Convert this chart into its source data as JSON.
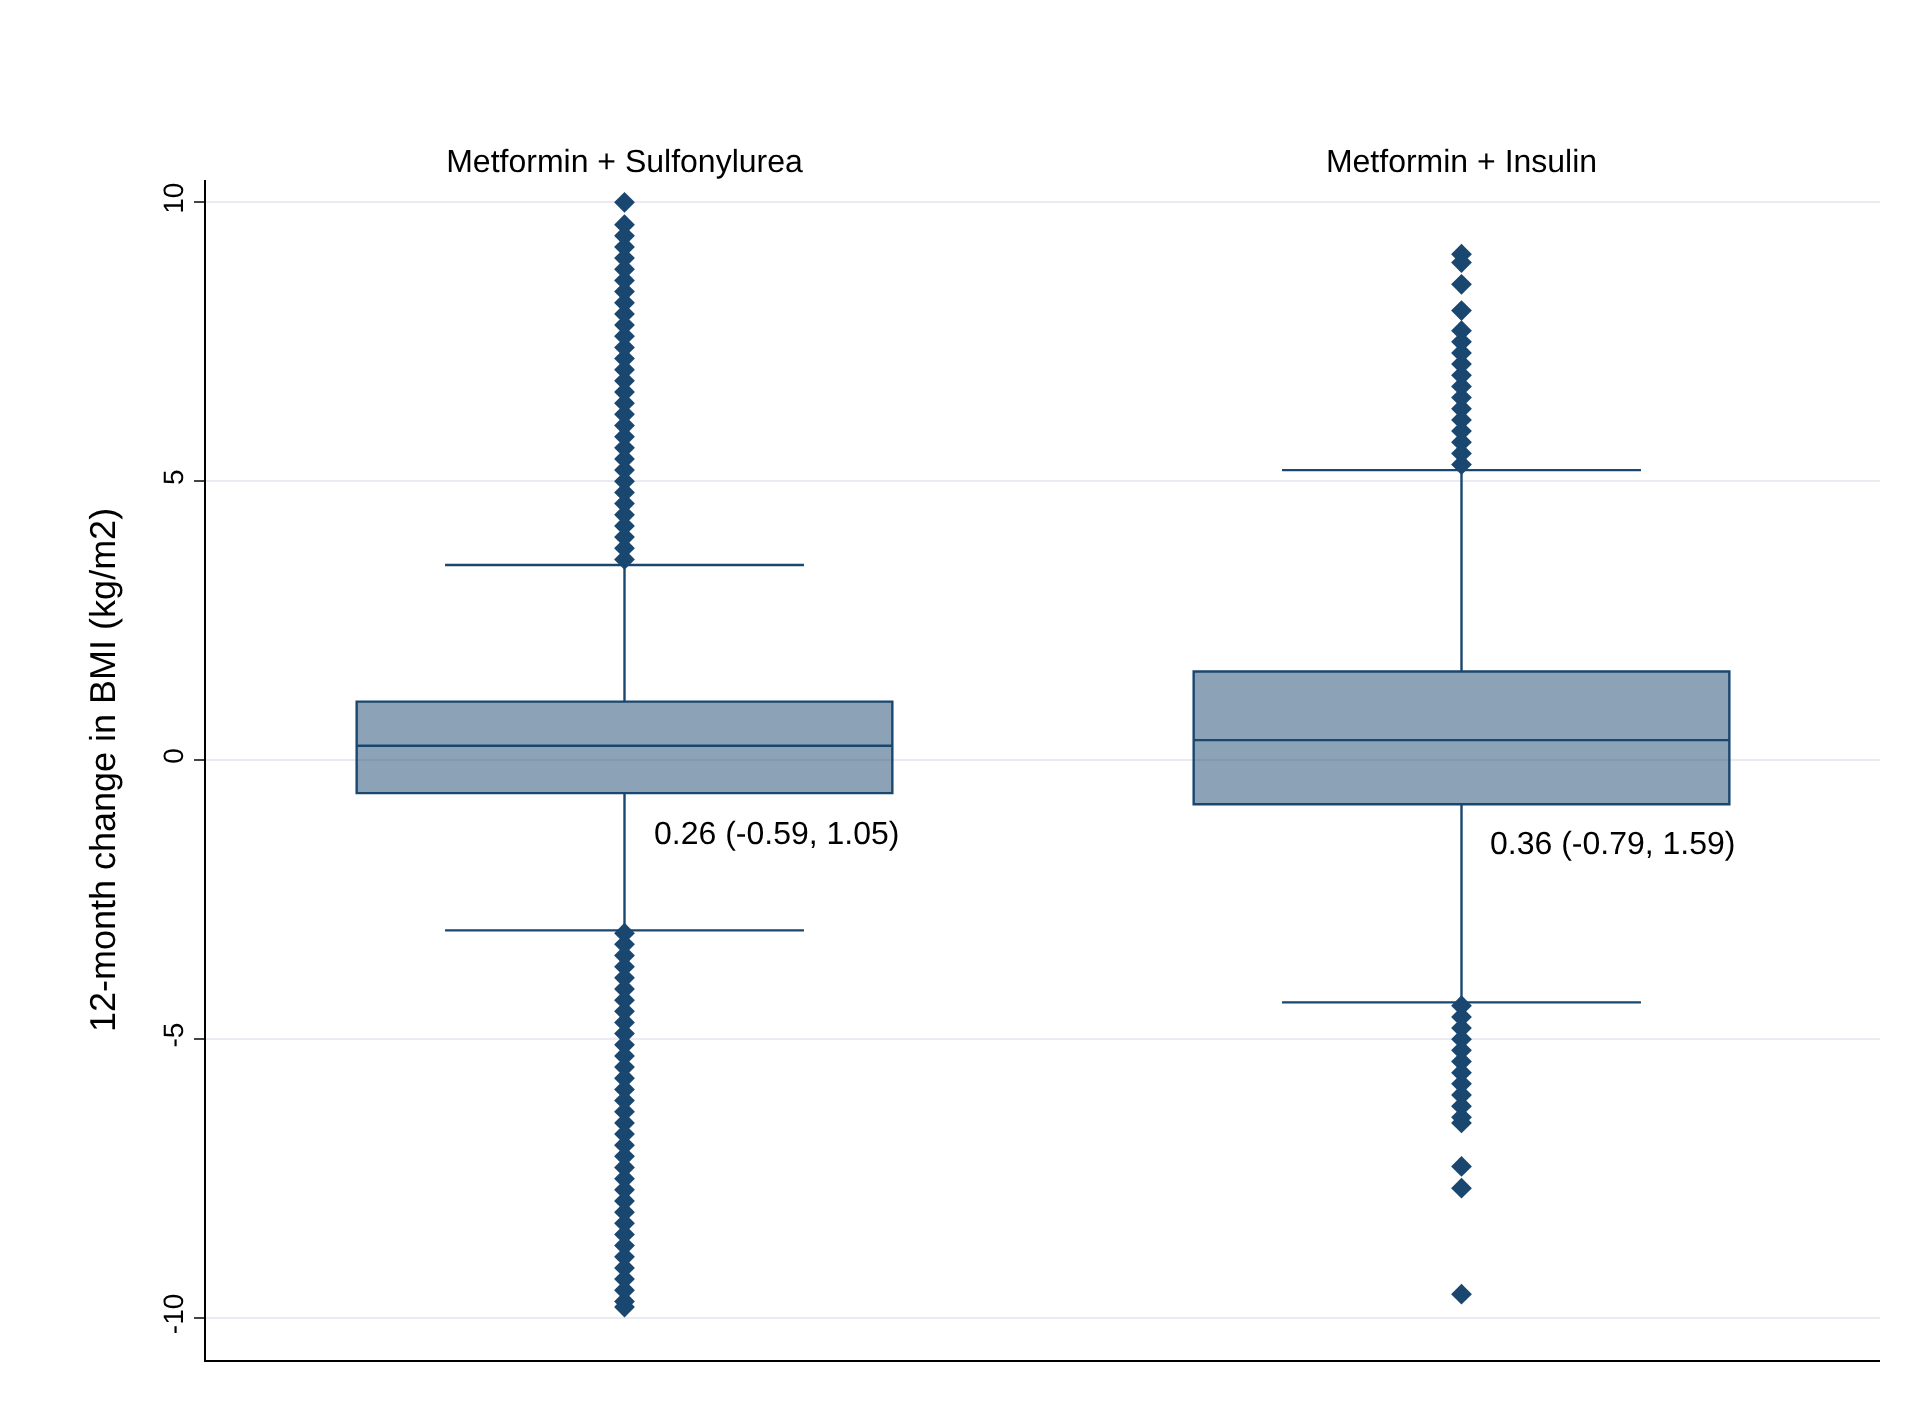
{
  "chart_data": {
    "type": "box",
    "ylabel": "12-month change in BMI (kg/m2)",
    "categories": [
      "Metformin + Sulfonylurea",
      "Metformin + Insulin"
    ],
    "ylim": [
      -10.75,
      10.4
    ],
    "yticks": [
      -10,
      -5,
      0,
      5,
      10
    ],
    "grid": "y",
    "marker": "diamond",
    "series": [
      {
        "color": "#1a476f",
        "boxes": [
          {
            "low": -3.05,
            "q1": -0.59,
            "median": 0.26,
            "q3": 1.05,
            "high": 3.5,
            "outliers": [
              3.6,
              3.8,
              4.0,
              4.2,
              4.4,
              4.6,
              4.8,
              5.0,
              5.2,
              5.4,
              5.6,
              5.8,
              6.0,
              6.2,
              6.4,
              6.6,
              6.8,
              7.0,
              7.2,
              7.4,
              7.6,
              7.8,
              8.0,
              8.2,
              8.4,
              8.6,
              8.8,
              9.0,
              9.2,
              9.4,
              9.6,
              10.0,
              -3.1,
              -3.3,
              -3.5,
              -3.7,
              -3.9,
              -4.1,
              -4.3,
              -4.5,
              -4.7,
              -4.9,
              -5.1,
              -5.3,
              -5.5,
              -5.7,
              -5.9,
              -6.1,
              -6.3,
              -6.5,
              -6.7,
              -6.9,
              -7.1,
              -7.3,
              -7.5,
              -7.7,
              -7.9,
              -8.1,
              -8.3,
              -8.5,
              -8.7,
              -8.9,
              -9.1,
              -9.3,
              -9.5,
              -9.7,
              -9.8
            ]
          },
          {
            "low": -4.34,
            "q1": -0.79,
            "median": 0.36,
            "q3": 1.59,
            "high": 5.2,
            "outliers": [
              5.3,
              5.5,
              5.7,
              5.9,
              6.1,
              6.3,
              6.5,
              6.7,
              6.9,
              7.1,
              7.3,
              7.5,
              7.7,
              8.06,
              8.53,
              8.92,
              9.07,
              -4.4,
              -4.6,
              -4.8,
              -5.0,
              -5.2,
              -5.4,
              -5.6,
              -5.8,
              -6.0,
              -6.2,
              -6.4,
              -6.5,
              -7.28,
              -7.67,
              -9.57
            ]
          }
        ]
      }
    ],
    "annotations": [
      "0.26 (-0.59, 1.05)",
      "0.36 (-0.79, 1.59)"
    ]
  }
}
